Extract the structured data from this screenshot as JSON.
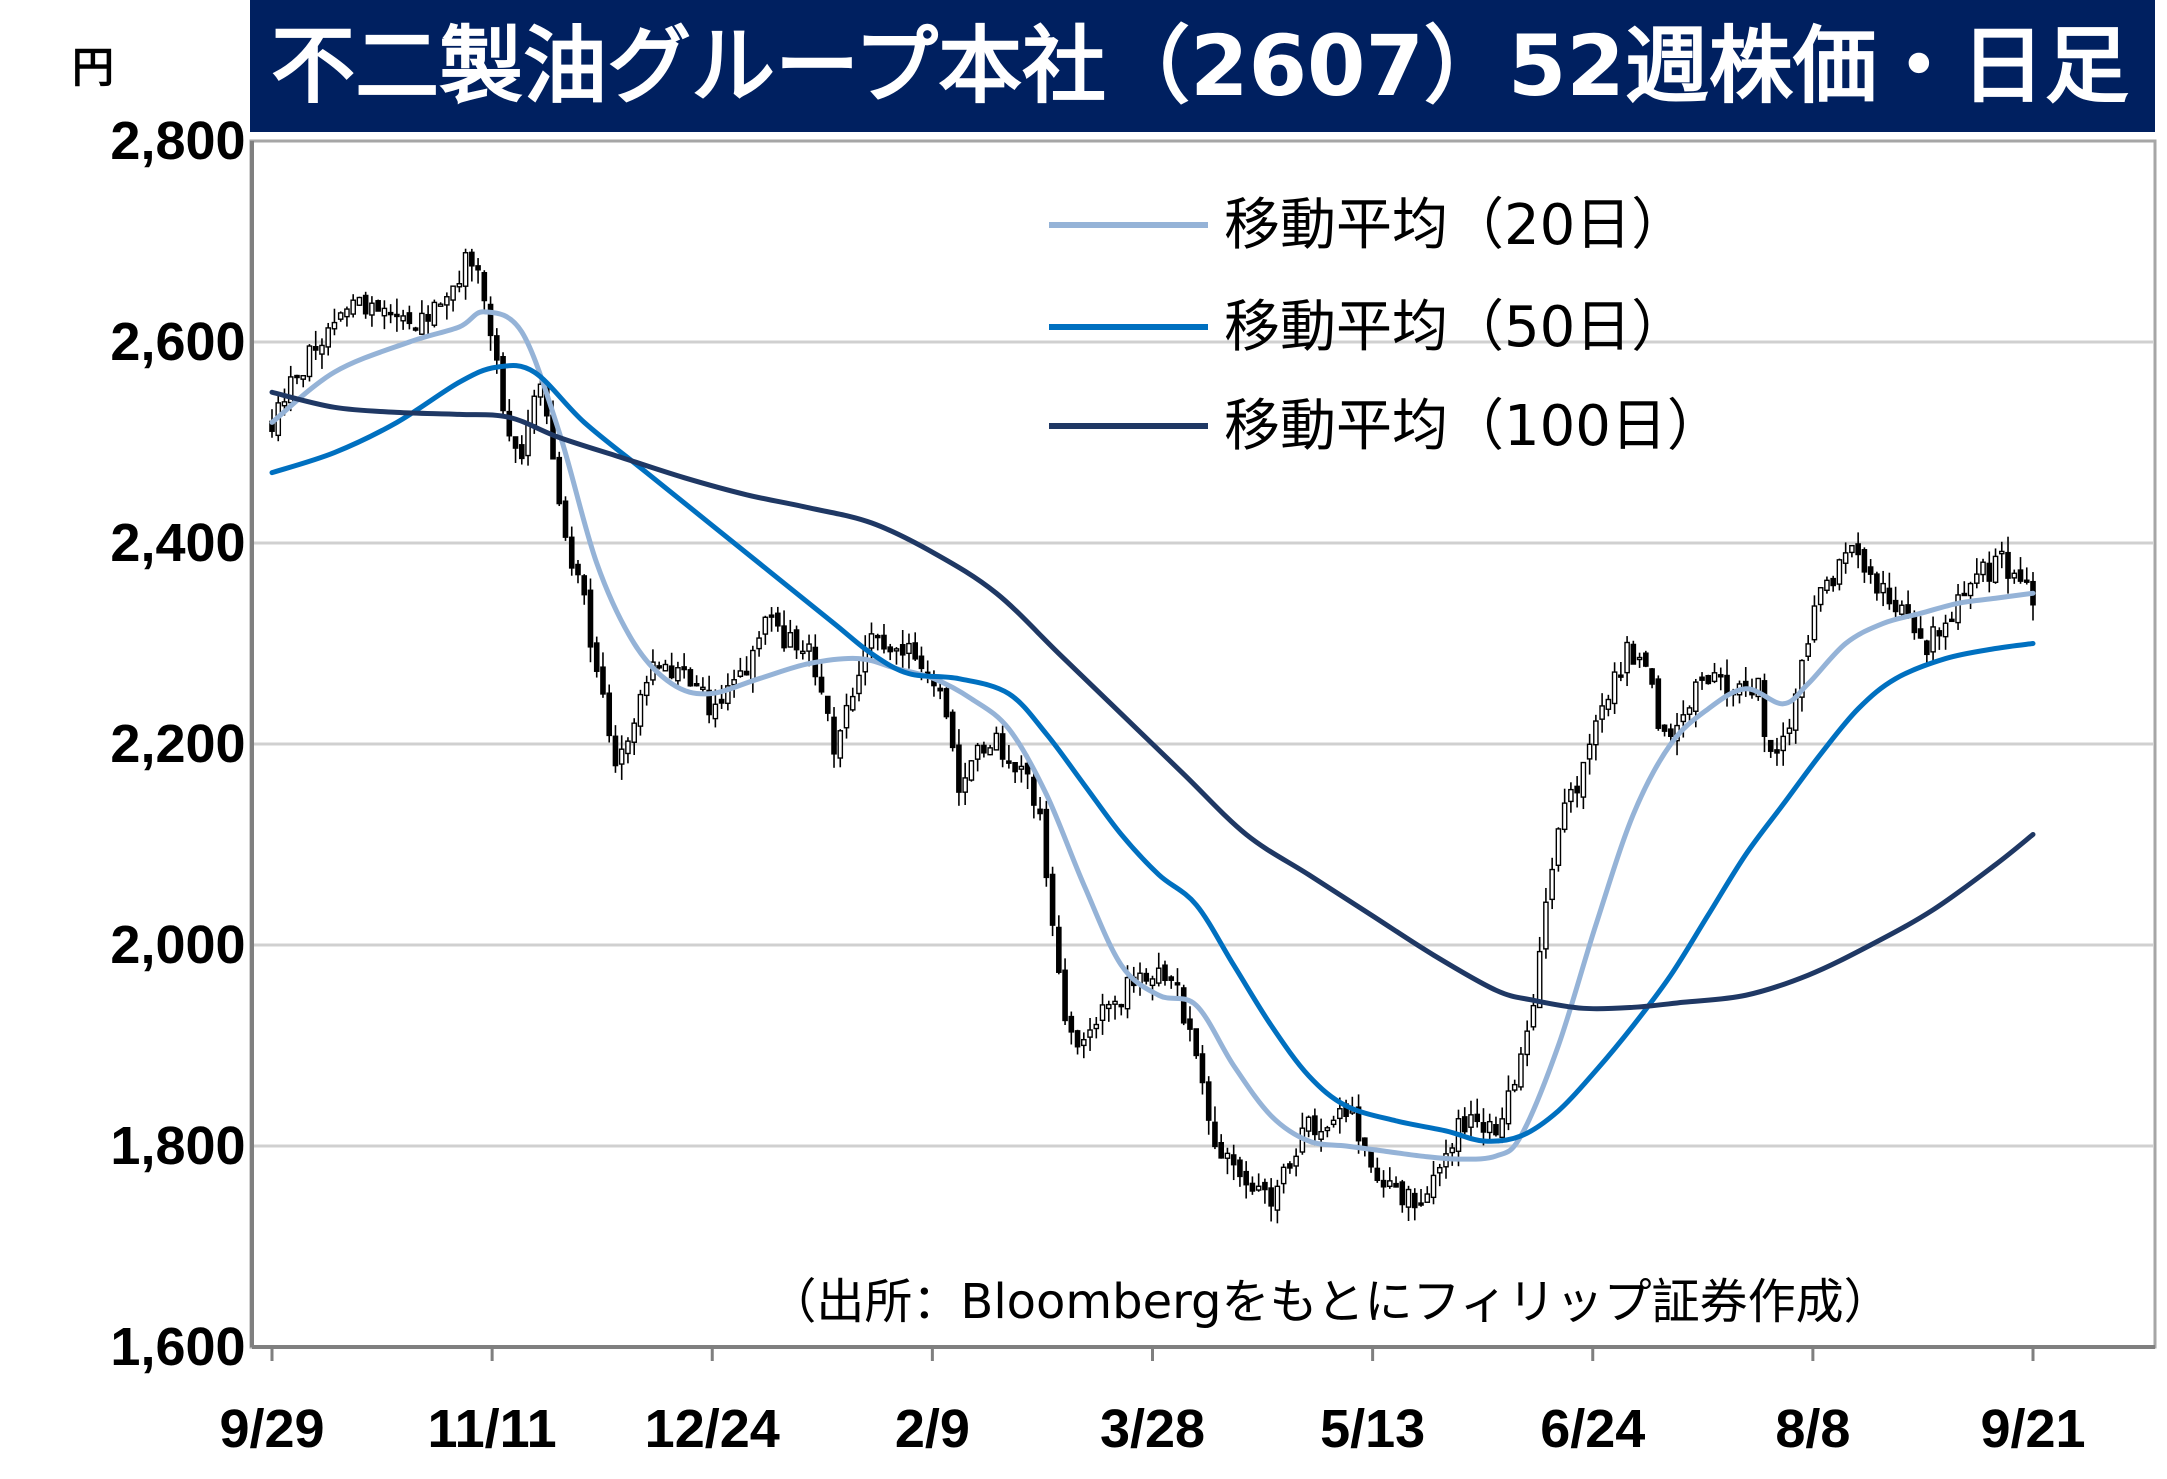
{
  "chart_data": {
    "type": "candlestick",
    "title": "不二製油グループ本社（2607）52週株価・日足",
    "y_unit": "円",
    "source": "（出所：Bloombergをもとにフィリップ証券作成）",
    "ylim": [
      1600,
      2800
    ],
    "y_ticks": [
      1600,
      1800,
      2000,
      2200,
      2400,
      2600,
      2800
    ],
    "y_tick_labels": [
      "1,600",
      "1,800",
      "2,000",
      "2,200",
      "2,400",
      "2,600",
      "2,800"
    ],
    "x_tick_labels": [
      "9/29",
      "11/11",
      "12/24",
      "2/9",
      "3/28",
      "5/13",
      "6/24",
      "8/8",
      "9/21"
    ],
    "grid": true,
    "legend_position": "top-right",
    "price_keys": [
      [
        0,
        2520
      ],
      [
        3,
        2560
      ],
      [
        8,
        2600
      ],
      [
        14,
        2640
      ],
      [
        22,
        2610
      ],
      [
        27,
        2640
      ],
      [
        31,
        2680
      ],
      [
        34,
        2650
      ],
      [
        37,
        2530
      ],
      [
        40,
        2490
      ],
      [
        43,
        2560
      ],
      [
        46,
        2440
      ],
      [
        48,
        2380
      ],
      [
        50,
        2340
      ],
      [
        53,
        2240
      ],
      [
        55,
        2180
      ],
      [
        57,
        2210
      ],
      [
        60,
        2270
      ],
      [
        63,
        2280
      ],
      [
        67,
        2260
      ],
      [
        70,
        2240
      ],
      [
        73,
        2260
      ],
      [
        76,
        2280
      ],
      [
        79,
        2320
      ],
      [
        83,
        2300
      ],
      [
        86,
        2290
      ],
      [
        88,
        2250
      ],
      [
        90,
        2200
      ],
      [
        93,
        2260
      ],
      [
        96,
        2310
      ],
      [
        99,
        2290
      ],
      [
        102,
        2300
      ],
      [
        105,
        2260
      ],
      [
        108,
        2230
      ],
      [
        110,
        2160
      ],
      [
        113,
        2190
      ],
      [
        116,
        2200
      ],
      [
        119,
        2180
      ],
      [
        121,
        2160
      ],
      [
        123,
        2120
      ],
      [
        125,
        2020
      ],
      [
        127,
        1920
      ],
      [
        130,
        1900
      ],
      [
        133,
        1940
      ],
      [
        136,
        1950
      ],
      [
        139,
        1970
      ],
      [
        142,
        1980
      ],
      [
        145,
        1950
      ],
      [
        148,
        1880
      ],
      [
        150,
        1830
      ],
      [
        152,
        1790
      ],
      [
        155,
        1770
      ],
      [
        157,
        1760
      ],
      [
        160,
        1740
      ],
      [
        163,
        1780
      ],
      [
        166,
        1820
      ],
      [
        169,
        1830
      ],
      [
        172,
        1840
      ],
      [
        175,
        1800
      ],
      [
        178,
        1760
      ],
      [
        181,
        1750
      ],
      [
        184,
        1740
      ],
      [
        187,
        1790
      ],
      [
        190,
        1820
      ],
      [
        193,
        1830
      ],
      [
        196,
        1820
      ],
      [
        198,
        1850
      ],
      [
        200,
        1880
      ],
      [
        202,
        1940
      ],
      [
        204,
        2040
      ],
      [
        206,
        2120
      ],
      [
        208,
        2150
      ],
      [
        211,
        2190
      ],
      [
        214,
        2250
      ],
      [
        217,
        2290
      ],
      [
        220,
        2280
      ],
      [
        223,
        2200
      ],
      [
        226,
        2230
      ],
      [
        229,
        2260
      ],
      [
        232,
        2260
      ],
      [
        235,
        2250
      ],
      [
        238,
        2260
      ],
      [
        240,
        2180
      ],
      [
        242,
        2200
      ],
      [
        244,
        2250
      ],
      [
        247,
        2330
      ],
      [
        250,
        2370
      ],
      [
        253,
        2390
      ],
      [
        256,
        2360
      ],
      [
        259,
        2350
      ],
      [
        262,
        2320
      ],
      [
        265,
        2300
      ],
      [
        268,
        2320
      ],
      [
        271,
        2350
      ],
      [
        274,
        2370
      ],
      [
        277,
        2380
      ],
      [
        280,
        2360
      ],
      [
        282,
        2350
      ]
    ],
    "series": [
      {
        "name": "移動平均（20日）",
        "color": "#95b3d7",
        "values": [
          [
            0,
            2520
          ],
          [
            10,
            2570
          ],
          [
            22,
            2600
          ],
          [
            30,
            2615
          ],
          [
            34,
            2630
          ],
          [
            40,
            2610
          ],
          [
            46,
            2510
          ],
          [
            52,
            2380
          ],
          [
            58,
            2300
          ],
          [
            64,
            2260
          ],
          [
            70,
            2250
          ],
          [
            78,
            2265
          ],
          [
            86,
            2280
          ],
          [
            94,
            2285
          ],
          [
            100,
            2275
          ],
          [
            106,
            2265
          ],
          [
            112,
            2245
          ],
          [
            118,
            2215
          ],
          [
            124,
            2150
          ],
          [
            130,
            2060
          ],
          [
            136,
            1980
          ],
          [
            142,
            1950
          ],
          [
            148,
            1940
          ],
          [
            154,
            1880
          ],
          [
            160,
            1830
          ],
          [
            166,
            1805
          ],
          [
            172,
            1800
          ],
          [
            178,
            1795
          ],
          [
            184,
            1790
          ],
          [
            190,
            1787
          ],
          [
            196,
            1790
          ],
          [
            200,
            1810
          ],
          [
            206,
            1900
          ],
          [
            212,
            2020
          ],
          [
            218,
            2130
          ],
          [
            224,
            2200
          ],
          [
            230,
            2235
          ],
          [
            236,
            2255
          ],
          [
            242,
            2240
          ],
          [
            246,
            2260
          ],
          [
            252,
            2300
          ],
          [
            258,
            2320
          ],
          [
            264,
            2330
          ],
          [
            270,
            2340
          ],
          [
            276,
            2345
          ],
          [
            282,
            2350
          ]
        ]
      },
      {
        "name": "移動平均（50日）",
        "color": "#0070c0",
        "values": [
          [
            0,
            2470
          ],
          [
            10,
            2490
          ],
          [
            20,
            2520
          ],
          [
            30,
            2560
          ],
          [
            36,
            2575
          ],
          [
            42,
            2570
          ],
          [
            50,
            2520
          ],
          [
            60,
            2470
          ],
          [
            70,
            2420
          ],
          [
            80,
            2370
          ],
          [
            90,
            2320
          ],
          [
            96,
            2290
          ],
          [
            102,
            2270
          ],
          [
            110,
            2265
          ],
          [
            118,
            2250
          ],
          [
            124,
            2210
          ],
          [
            130,
            2160
          ],
          [
            136,
            2110
          ],
          [
            142,
            2070
          ],
          [
            148,
            2040
          ],
          [
            154,
            1980
          ],
          [
            160,
            1920
          ],
          [
            166,
            1870
          ],
          [
            172,
            1840
          ],
          [
            180,
            1825
          ],
          [
            188,
            1815
          ],
          [
            194,
            1805
          ],
          [
            200,
            1810
          ],
          [
            206,
            1835
          ],
          [
            212,
            1875
          ],
          [
            218,
            1920
          ],
          [
            224,
            1970
          ],
          [
            230,
            2030
          ],
          [
            236,
            2090
          ],
          [
            242,
            2140
          ],
          [
            248,
            2190
          ],
          [
            254,
            2235
          ],
          [
            260,
            2265
          ],
          [
            268,
            2285
          ],
          [
            276,
            2295
          ],
          [
            282,
            2300
          ]
        ]
      },
      {
        "name": "移動平均（100日）",
        "color": "#1f3864",
        "values": [
          [
            0,
            2550
          ],
          [
            10,
            2535
          ],
          [
            20,
            2530
          ],
          [
            30,
            2528
          ],
          [
            38,
            2525
          ],
          [
            46,
            2505
          ],
          [
            56,
            2485
          ],
          [
            66,
            2465
          ],
          [
            76,
            2448
          ],
          [
            86,
            2435
          ],
          [
            96,
            2420
          ],
          [
            106,
            2390
          ],
          [
            116,
            2350
          ],
          [
            126,
            2290
          ],
          [
            136,
            2230
          ],
          [
            146,
            2170
          ],
          [
            156,
            2110
          ],
          [
            166,
            2070
          ],
          [
            176,
            2030
          ],
          [
            186,
            1990
          ],
          [
            196,
            1955
          ],
          [
            202,
            1945
          ],
          [
            210,
            1937
          ],
          [
            218,
            1938
          ],
          [
            226,
            1943
          ],
          [
            236,
            1950
          ],
          [
            246,
            1970
          ],
          [
            256,
            2000
          ],
          [
            266,
            2035
          ],
          [
            276,
            2080
          ],
          [
            282,
            2110
          ]
        ]
      }
    ]
  }
}
